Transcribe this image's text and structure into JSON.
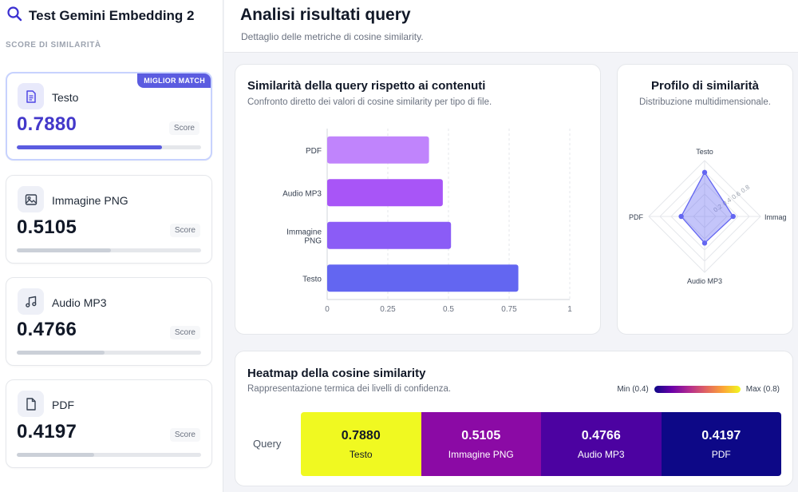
{
  "app": {
    "title": "Test Gemini Embedding 2",
    "section_label": "SCORE DI SIMILARITÀ"
  },
  "header": {
    "title": "Analisi risultati query",
    "subtitle": "Dettaglio delle metriche di cosine similarity."
  },
  "cards": [
    {
      "name": "Testo",
      "value": "0.7880",
      "score_label": "Score",
      "icon": "document-icon",
      "badge": "MIGLIOR MATCH",
      "fill": 0.788
    },
    {
      "name": "Immagine PNG",
      "value": "0.5105",
      "score_label": "Score",
      "icon": "image-icon",
      "fill": 0.5105
    },
    {
      "name": "Audio MP3",
      "value": "0.4766",
      "score_label": "Score",
      "icon": "music-icon",
      "fill": 0.4766
    },
    {
      "name": "PDF",
      "value": "0.4197",
      "score_label": "Score",
      "icon": "file-icon",
      "fill": 0.4197
    }
  ],
  "bar_panel": {
    "title": "Similarità della query rispetto ai contenuti",
    "subtitle": "Confronto diretto dei valori di cosine similarity per tipo di file."
  },
  "radar_panel": {
    "title": "Profilo di similarità",
    "subtitle": "Distribuzione multidimensionale."
  },
  "heatmap": {
    "title": "Heatmap della cosine similarity",
    "subtitle": "Rappresentazione termica dei livelli di confidenza.",
    "row_label": "Query",
    "legend_min": "Min (0.4)",
    "legend_max": "Max (0.8)",
    "cells": [
      {
        "value": "0.7880",
        "label": "Testo",
        "color": "#f0f921",
        "text_color": "#111827"
      },
      {
        "value": "0.5105",
        "label": "Immagine PNG",
        "color": "#8b0aa5",
        "text_color": "#ffffff"
      },
      {
        "value": "0.4766",
        "label": "Audio MP3",
        "color": "#4c02a1",
        "text_color": "#ffffff"
      },
      {
        "value": "0.4197",
        "label": "PDF",
        "color": "#0d0887",
        "text_color": "#ffffff"
      }
    ]
  },
  "chart_data": [
    {
      "type": "bar",
      "orientation": "horizontal",
      "title": "Similarità della query rispetto ai contenuti",
      "categories": [
        "PDF",
        "Audio MP3",
        "Immagine PNG",
        "Testo"
      ],
      "category_labels": [
        [
          "PDF"
        ],
        [
          "Audio MP3"
        ],
        [
          "Immagine",
          "PNG"
        ],
        [
          "Testo"
        ]
      ],
      "values": [
        0.4197,
        0.4766,
        0.5105,
        0.788
      ],
      "colors": [
        "#c084fc",
        "#a855f7",
        "#8b5cf6",
        "#6366f1"
      ],
      "xlim": [
        0,
        1
      ],
      "xticks": [
        0,
        0.25,
        0.5,
        0.75,
        1
      ],
      "xtick_labels": [
        "0",
        "0.25",
        "0.5",
        "0.75",
        "1"
      ],
      "grid": true
    },
    {
      "type": "radar",
      "title": "Profilo di similarità",
      "axes": [
        "Testo",
        "Immagine PNG",
        "Audio MP3",
        "PDF"
      ],
      "axis_labels": [
        "Testo",
        "Immag",
        "Audio MP3",
        "PDF"
      ],
      "values": [
        0.788,
        0.5105,
        0.4766,
        0.4197
      ],
      "rmax": 1,
      "rings": [
        0.2,
        0.4,
        0.6,
        0.8,
        1.0
      ],
      "ring_labels": [
        "0.2",
        "0.4",
        "0.6",
        "0.8"
      ]
    }
  ]
}
